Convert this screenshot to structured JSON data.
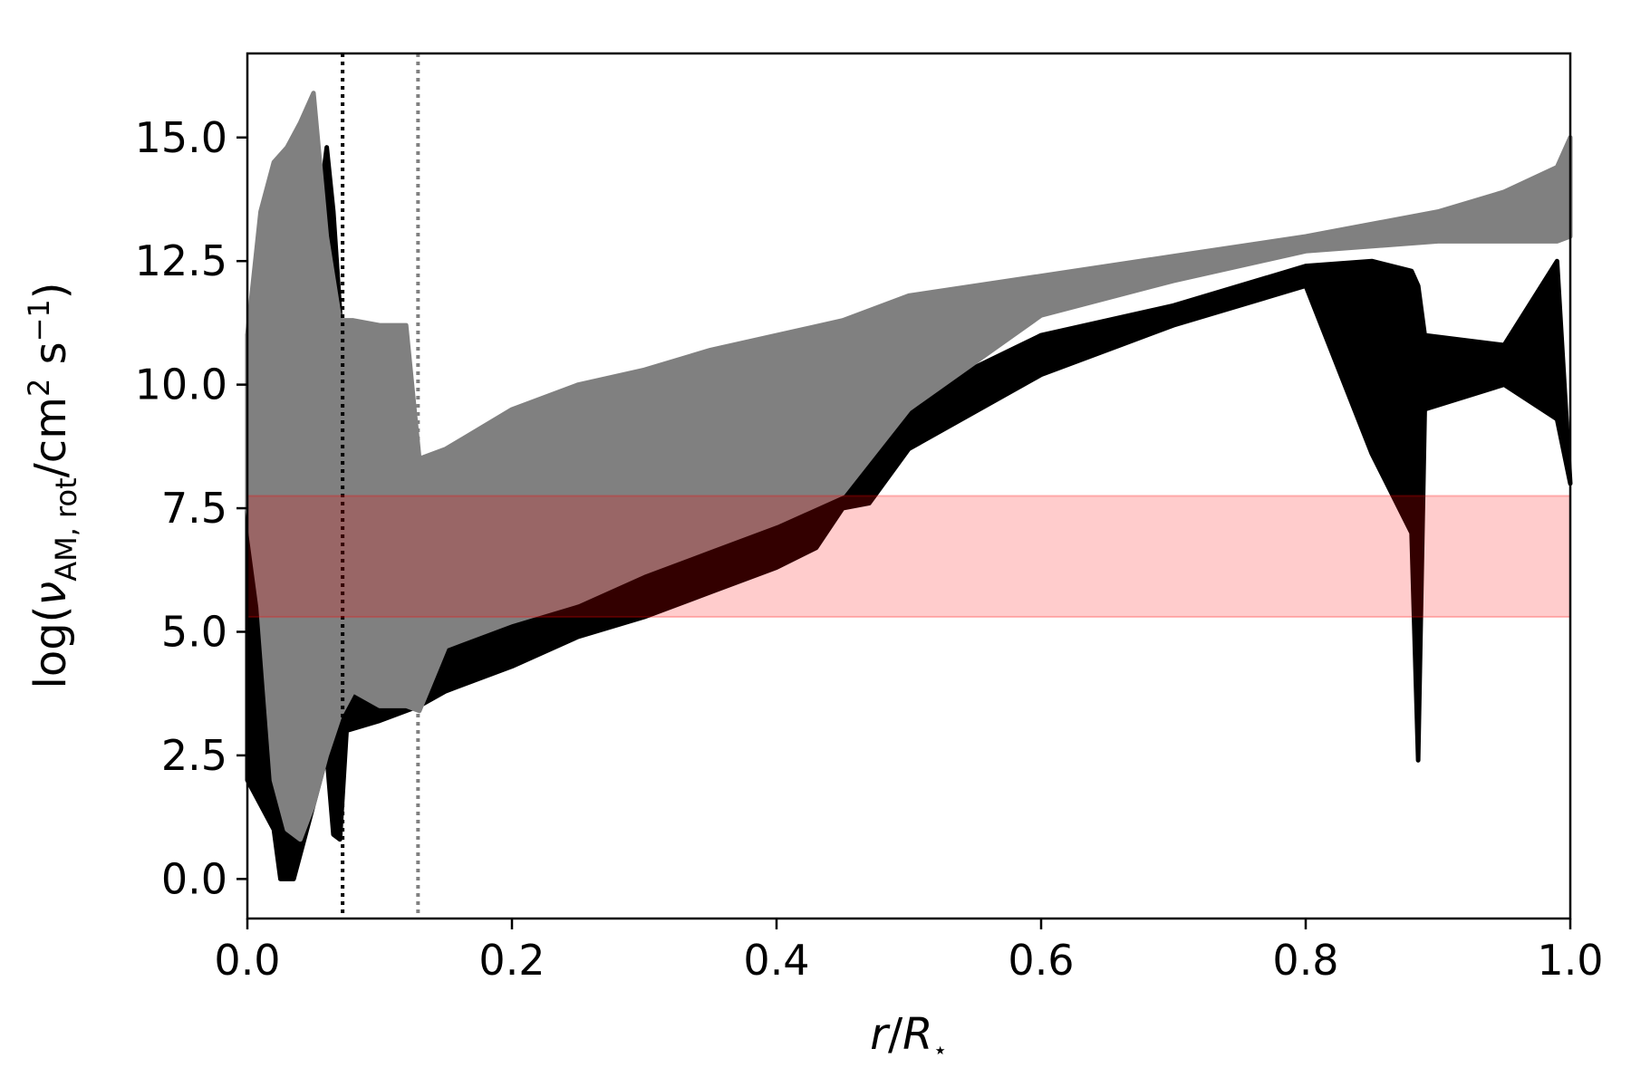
{
  "chart_data": {
    "type": "band",
    "xlabel": [
      "r",
      "/",
      "R",
      "⋆"
    ],
    "ylabel": [
      "log(",
      "ν",
      "AM, rot",
      "/cm",
      "2",
      " s",
      "−1",
      ")"
    ],
    "xlim": [
      0,
      1
    ],
    "ylim": [
      -0.8,
      16.7
    ],
    "xticks": [
      {
        "value": 0,
        "label": "0.0"
      },
      {
        "value": 0.2,
        "label": "0.2"
      },
      {
        "value": 0.4,
        "label": "0.4"
      },
      {
        "value": 0.6,
        "label": "0.6"
      },
      {
        "value": 0.8,
        "label": "0.8"
      },
      {
        "value": 1,
        "label": "1.0"
      }
    ],
    "yticks": [
      {
        "value": 0,
        "label": "0.0"
      },
      {
        "value": 2.5,
        "label": "2.5"
      },
      {
        "value": 5,
        "label": "5.0"
      },
      {
        "value": 7.5,
        "label": "7.5"
      },
      {
        "value": 10,
        "label": "10.0"
      },
      {
        "value": 12.5,
        "label": "12.5"
      },
      {
        "value": 15,
        "label": "15.0"
      }
    ],
    "series": [
      {
        "color": "#000000",
        "x": [
          0,
          0.02,
          0.025,
          0.035,
          0.06,
          0.065,
          0.07,
          0.075,
          0.1,
          0.13,
          0.15,
          0.2,
          0.25,
          0.3,
          0.35,
          0.4,
          0.43,
          0.45,
          0.47,
          0.5,
          0.6,
          0.7,
          0.8,
          0.85,
          0.88,
          0.885,
          0.89,
          0.95,
          0.99,
          1.0
        ],
        "values": [
          11,
          10,
          9.8,
          9.5,
          14.8,
          13.5,
          11.5,
          3.6,
          4.0,
          4.6,
          4.8,
          5.4,
          5.9,
          6.4,
          6.9,
          7.4,
          7.6,
          8.3,
          9.0,
          9.7,
          11.0,
          11.6,
          12.4,
          12.5,
          12.3,
          12.0,
          11.0,
          10.8,
          12.5,
          8.0
        ],
        "lower": [
          2.0,
          1.0,
          0.0,
          0.0,
          2.5,
          0.9,
          0.8,
          3.0,
          3.2,
          3.5,
          3.8,
          4.3,
          4.9,
          5.3,
          5.8,
          6.3,
          6.7,
          7.5,
          7.6,
          8.7,
          10.2,
          11.2,
          12.0,
          8.6,
          7.0,
          2.4,
          9.5,
          10.0,
          9.3,
          8.0
        ]
      },
      {
        "color": "#808080",
        "x": [
          0,
          0.01,
          0.02,
          0.03,
          0.04,
          0.05,
          0.06,
          0.07,
          0.08,
          0.1,
          0.12,
          0.13,
          0.15,
          0.2,
          0.25,
          0.3,
          0.35,
          0.4,
          0.45,
          0.5,
          0.6,
          0.7,
          0.8,
          0.9,
          0.95,
          0.99,
          1.0
        ],
        "values": [
          11,
          13.5,
          14.5,
          14.8,
          15.3,
          15.9,
          13,
          11.3,
          11.3,
          11.2,
          11.2,
          8.5,
          8.7,
          9.5,
          10.0,
          10.3,
          10.7,
          11.0,
          11.3,
          11.8,
          12.2,
          12.6,
          13.0,
          13.5,
          13.9,
          14.4,
          15.0
        ],
        "lower": [
          7.5,
          5.5,
          2.0,
          1.0,
          0.8,
          1.5,
          2.5,
          3.3,
          3.8,
          3.5,
          3.5,
          3.4,
          4.7,
          5.2,
          5.6,
          6.2,
          6.7,
          7.2,
          7.8,
          9.5,
          11.4,
          12.1,
          12.7,
          12.9,
          12.9,
          12.9,
          13.0
        ]
      }
    ],
    "vlines": [
      {
        "value": 0.072,
        "color": "#000000"
      },
      {
        "value": 0.129,
        "color": "#808080"
      }
    ],
    "hspan": {
      "values": [
        5.3,
        7.75
      ],
      "color": "#ff0000"
    }
  }
}
